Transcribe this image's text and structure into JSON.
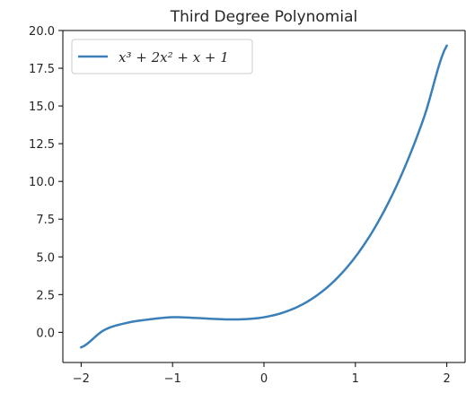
{
  "chart_data": {
    "type": "line",
    "title": "Third Degree Polynomial",
    "xlabel": "",
    "ylabel": "",
    "xlim": [
      -2.2,
      2.2
    ],
    "ylim": [
      -2.0,
      20.0
    ],
    "x_ticks": [
      -2,
      -1,
      0,
      1,
      2
    ],
    "x_tick_labels": [
      "−2",
      "−1",
      "0",
      "1",
      "2"
    ],
    "y_ticks": [
      0.0,
      2.5,
      5.0,
      7.5,
      10.0,
      12.5,
      15.0,
      17.5,
      20.0
    ],
    "y_tick_labels": [
      "0.0",
      "2.5",
      "5.0",
      "7.5",
      "10.0",
      "12.5",
      "15.0",
      "17.5",
      "20.0"
    ],
    "grid": false,
    "legend_position": "top-left",
    "series": [
      {
        "name": "x³ + 2x² + x + 1",
        "color": "#3b7fb9",
        "x": [
          -2.0,
          -1.75,
          -1.5,
          -1.25,
          -1.0,
          -0.75,
          -0.5,
          -0.25,
          0.0,
          0.25,
          0.5,
          0.75,
          1.0,
          1.25,
          1.5,
          1.75,
          2.0
        ],
        "y": [
          -1.0,
          0.141,
          0.625,
          0.859,
          1.0,
          0.953,
          0.875,
          0.859,
          1.0,
          1.391,
          2.125,
          3.297,
          5.0,
          7.328,
          10.375,
          14.234,
          19.0
        ]
      }
    ]
  }
}
